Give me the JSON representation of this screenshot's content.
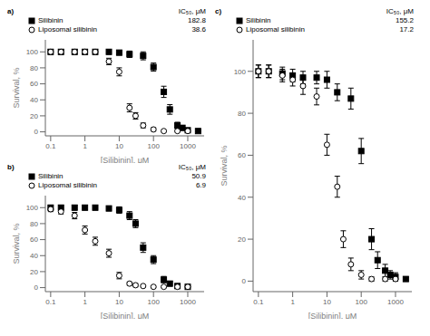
{
  "chart_data": [
    {
      "type": "scatter",
      "title": "a)",
      "x_label": "[Silibinin], μM",
      "y_label": "Survival, %",
      "log": "x",
      "legend": "top",
      "annotations": [
        "IC₅₀, μM"
      ],
      "xlim": [
        0.07,
        3000
      ],
      "ylim": [
        -5,
        115
      ],
      "xticks": [
        0.1,
        1,
        10,
        100,
        1000
      ],
      "yticks": [
        0,
        20,
        40,
        60,
        80,
        100
      ],
      "series": [
        {
          "name": "Silibinin",
          "color": "#000000",
          "marker": "square",
          "ic50": 182.8,
          "x": [
            0.1,
            0.2,
            0.5,
            1,
            2,
            5,
            10,
            20,
            50,
            100,
            200,
            300,
            500,
            700,
            1000,
            2000
          ],
          "values": [
            100,
            100,
            100,
            100,
            100,
            100,
            99,
            97,
            95,
            81,
            50,
            28,
            8,
            5,
            2,
            1
          ],
          "errors": [
            3,
            3,
            3,
            3,
            3,
            3,
            3,
            4,
            5,
            5,
            7,
            6,
            4,
            3,
            2,
            1
          ]
        },
        {
          "name": "Liposomal silibinin",
          "color": "#000000",
          "marker": "open_circle",
          "ic50": 38.6,
          "x": [
            0.1,
            0.2,
            0.5,
            1,
            2,
            5,
            10,
            20,
            30,
            50,
            100,
            200,
            500,
            1000
          ],
          "values": [
            100,
            100,
            100,
            100,
            100,
            88,
            75,
            30,
            20,
            8,
            3,
            1,
            1,
            1
          ],
          "errors": [
            3,
            3,
            3,
            3,
            3,
            4,
            5,
            5,
            4,
            3,
            2,
            1,
            1,
            1
          ]
        }
      ]
    },
    {
      "type": "scatter",
      "title": "b)",
      "x_label": "[Silibinin], μM",
      "y_label": "Survival, %",
      "log": "x",
      "legend": "top",
      "annotations": [
        "IC₅₀, μM"
      ],
      "xlim": [
        0.07,
        3000
      ],
      "ylim": [
        -5,
        115
      ],
      "xticks": [
        0.1,
        1,
        10,
        100,
        1000
      ],
      "yticks": [
        0,
        20,
        40,
        60,
        80,
        100
      ],
      "series": [
        {
          "name": "Silibinin",
          "color": "#000000",
          "marker": "square",
          "ic50": 50.9,
          "x": [
            0.1,
            0.2,
            0.5,
            1,
            2,
            5,
            10,
            20,
            30,
            50,
            100,
            200,
            300,
            500,
            1000
          ],
          "values": [
            100,
            100,
            100,
            100,
            100,
            99,
            97,
            90,
            80,
            50,
            35,
            10,
            5,
            2,
            1
          ],
          "errors": [
            3,
            3,
            3,
            3,
            3,
            3,
            4,
            5,
            5,
            6,
            5,
            4,
            3,
            2,
            1
          ]
        },
        {
          "name": "Liposomal silibinin",
          "color": "#000000",
          "marker": "open_circle",
          "ic50": 6.9,
          "x": [
            0.1,
            0.2,
            0.5,
            1,
            2,
            5,
            10,
            20,
            30,
            50,
            100,
            200,
            500,
            1000
          ],
          "values": [
            98,
            95,
            90,
            72,
            58,
            43,
            15,
            5,
            3,
            2,
            1,
            1,
            1,
            1
          ],
          "errors": [
            3,
            3,
            4,
            5,
            5,
            5,
            4,
            2,
            2,
            1,
            1,
            1,
            1,
            1
          ]
        }
      ]
    },
    {
      "type": "scatter",
      "title": "c)",
      "x_label": "[Silibinin], μM",
      "y_label": "Survival, %",
      "log": "x",
      "legend": "top",
      "annotations": [
        "IC₅₀, μM"
      ],
      "xlim": [
        0.07,
        3000
      ],
      "ylim": [
        -5,
        115
      ],
      "xticks": [
        0.1,
        1,
        10,
        100,
        1000
      ],
      "yticks": [
        0,
        20,
        40,
        60,
        80,
        100
      ],
      "series": [
        {
          "name": "Silibinin",
          "color": "#000000",
          "marker": "square",
          "ic50": 155.2,
          "x": [
            0.1,
            0.2,
            0.5,
            1,
            2,
            5,
            10,
            20,
            50,
            100,
            200,
            300,
            500,
            700,
            1000,
            2000
          ],
          "values": [
            100,
            100,
            99,
            98,
            97,
            97,
            96,
            90,
            87,
            62,
            20,
            10,
            5,
            3,
            2,
            1
          ],
          "errors": [
            3,
            3,
            3,
            3,
            3,
            3,
            4,
            4,
            5,
            6,
            5,
            4,
            3,
            2,
            2,
            1
          ]
        },
        {
          "name": "Liposomal silibinin",
          "color": "#000000",
          "marker": "open_circle",
          "ic50": 17.2,
          "x": [
            0.1,
            0.2,
            0.5,
            1,
            2,
            5,
            10,
            20,
            30,
            50,
            100,
            200,
            500,
            1000
          ],
          "values": [
            100,
            100,
            98,
            96,
            93,
            88,
            65,
            45,
            20,
            8,
            3,
            1,
            1,
            1
          ],
          "errors": [
            3,
            3,
            3,
            3,
            4,
            4,
            5,
            5,
            4,
            3,
            2,
            1,
            1,
            1
          ]
        }
      ]
    }
  ]
}
